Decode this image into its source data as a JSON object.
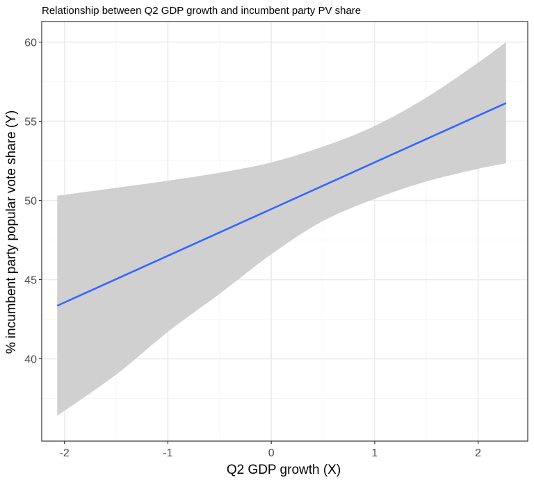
{
  "chart_data": {
    "type": "line",
    "title": "Relationship between Q2 GDP growth  and incumbent party PV share",
    "xlabel": "Q2 GDP growth (X)",
    "ylabel": "% incumbent party popular vote share (Y)",
    "xlim": [
      -2.22,
      2.48
    ],
    "ylim": [
      34.8,
      61.3
    ],
    "x_ticks": [
      -2,
      -1,
      0,
      1,
      2
    ],
    "x_tick_labels": [
      "-2",
      "-1",
      "0",
      "1",
      "2"
    ],
    "x_minor_ticks": [
      -1.5,
      -0.5,
      0.5,
      1.5
    ],
    "y_ticks": [
      40,
      45,
      50,
      55,
      60
    ],
    "y_tick_labels": [
      "40",
      "45",
      "50",
      "55",
      "60"
    ],
    "y_minor_ticks": [
      37.5,
      42.5,
      47.5,
      52.5,
      57.5
    ],
    "grid": true,
    "series": [
      {
        "type": "line",
        "x": [
          -2.07,
          2.27
        ],
        "y": [
          43.35,
          56.15
        ],
        "color": "#3366ff"
      }
    ],
    "confidence_band": {
      "x": [
        -2.07,
        -1.5,
        -1.0,
        -0.5,
        0.0,
        0.5,
        1.0,
        1.5,
        2.0,
        2.27
      ],
      "upper": [
        50.3,
        50.8,
        51.25,
        51.75,
        52.4,
        53.4,
        54.7,
        56.5,
        58.7,
        60.0
      ],
      "lower": [
        36.4,
        39.0,
        41.7,
        44.1,
        46.6,
        48.7,
        50.1,
        51.2,
        52.0,
        52.35
      ],
      "color": "#d0d0d0"
    },
    "panel_border_color": "#333333",
    "grid_major_color": "#ebebeb",
    "grid_minor_color": "#f5f5f5"
  }
}
